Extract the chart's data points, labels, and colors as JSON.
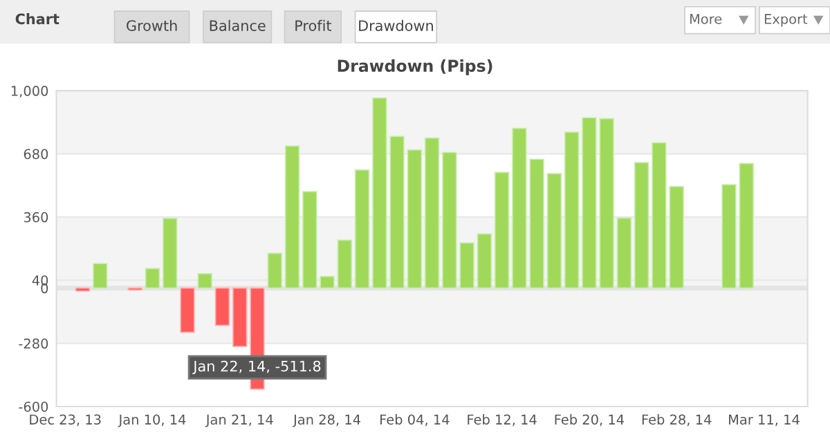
{
  "chart_data": {
    "type": "bar",
    "title": "Drawdown (Pips)",
    "categories": [
      "Dec 23, 13",
      null,
      null,
      null,
      null,
      "Jan 10, 14",
      null,
      null,
      null,
      null,
      "Jan 21, 14",
      null,
      null,
      null,
      null,
      "Jan 28, 14",
      null,
      null,
      null,
      null,
      "Feb 04, 14",
      null,
      null,
      null,
      null,
      "Feb 12, 14",
      null,
      null,
      null,
      null,
      "Feb 20, 14",
      null,
      null,
      null,
      null,
      "Feb 28, 14",
      null,
      null,
      null,
      null,
      "Mar 11, 14",
      null,
      null
    ],
    "values": [
      null,
      -15,
      124,
      null,
      -10,
      99,
      353,
      -224,
      73,
      -189,
      -296,
      -511.8,
      176,
      720,
      489,
      59,
      243,
      598,
      963,
      768,
      700,
      760,
      687,
      229,
      274,
      586,
      809,
      652,
      580,
      790,
      863,
      858,
      355,
      636,
      736,
      514,
      null,
      null,
      524,
      631,
      null,
      null,
      null
    ],
    "colors": [
      "#a0d95a",
      "#ff5a5a",
      "#a0d95a",
      "#a0d95a",
      "#ff5a5a",
      "#a0d95a",
      "#a0d95a",
      "#ff5a5a",
      "#a0d95a",
      "#ff5a5a",
      "#ff5a5a",
      "#ff5a5a",
      "#a0d95a",
      "#a0d95a",
      "#a0d95a",
      "#a0d95a",
      "#a0d95a",
      "#a0d95a",
      "#a0d95a",
      "#a0d95a",
      "#a0d95a",
      "#a0d95a",
      "#a0d95a",
      "#a0d95a",
      "#a0d95a",
      "#a0d95a",
      "#a0d95a",
      "#a0d95a",
      "#a0d95a",
      "#a0d95a",
      "#a0d95a",
      "#a0d95a",
      "#a0d95a",
      "#a0d95a",
      "#a0d95a",
      "#a0d95a",
      "#a0d95a",
      "#a0d95a",
      "#a0d95a",
      "#a0d95a",
      "#a0d95a",
      "#a0d95a",
      "#a0d95a"
    ],
    "ylim": [
      -600,
      1000
    ],
    "yticks": [
      -600,
      -280,
      0,
      40,
      360,
      680,
      {
        "value": 1000,
        "label": "1,000"
      }
    ],
    "grid": "y",
    "legend": false,
    "bands": [
      {
        "axis": "y",
        "from": 680,
        "to": 1000,
        "color": "#f4f4f4"
      },
      {
        "axis": "y",
        "from": -280,
        "to": 360,
        "color": "#f4f4f4"
      }
    ],
    "ref_lines": [
      {
        "axis": "y",
        "value": 0,
        "color": "#e4e4e4"
      }
    ],
    "annotations": [
      "Chart",
      "Growth",
      "Balance",
      "Profit",
      "Drawdown",
      "More",
      "Export",
      {
        "text": "Jan 22, 14, -511.8",
        "y": -511.8
      }
    ]
  }
}
